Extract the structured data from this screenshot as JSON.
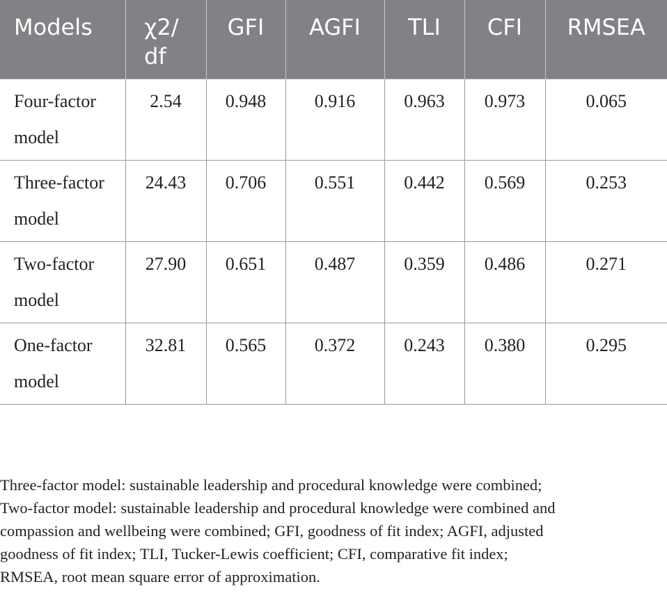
{
  "table": {
    "header": [
      "Models",
      "χ2/df",
      "GFI",
      "AGFI",
      "TLI",
      "CFI",
      "RMSEA"
    ],
    "rows": [
      [
        "Four-factor model",
        "2.54",
        "0.948",
        "0.916",
        "0.963",
        "0.973",
        "0.065"
      ],
      [
        "Three-factor model",
        "24.43",
        "0.706",
        "0.551",
        "0.442",
        "0.569",
        "0.253"
      ],
      [
        "Two-factor model",
        "27.90",
        "0.651",
        "0.487",
        "0.359",
        "0.486",
        "0.271"
      ],
      [
        "One-factor model",
        "32.81",
        "0.565",
        "0.372",
        "0.243",
        "0.380",
        "0.295"
      ]
    ]
  },
  "footnote": [
    "Three-factor model: sustainable leadership and procedural knowledge were combined;",
    "Two-factor model: sustainable leadership and procedural knowledge were combined and",
    "compassion and wellbeing were combined; GFI, goodness of fit index; AGFI, adjusted",
    "goodness of fit index; TLI, Tucker-Lewis coefficient; CFI, comparative fit index;",
    "RMSEA, root mean square error of approximation."
  ]
}
